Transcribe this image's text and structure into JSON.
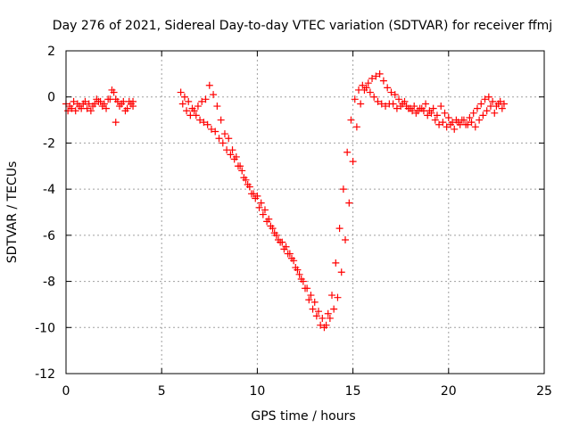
{
  "chart_data": {
    "type": "scatter",
    "title": "Day 276 of 2021, Sidereal Day-to-day VTEC variation (SDTVAR) for receiver ffmj",
    "xlabel": "GPS time / hours",
    "ylabel": "SDTVAR / TECUs",
    "xlim": [
      0,
      25
    ],
    "ylim": [
      -12,
      2
    ],
    "xticks": [
      0,
      5,
      10,
      15,
      20,
      25
    ],
    "yticks": [
      -12,
      -10,
      -8,
      -6,
      -4,
      -2,
      0,
      2
    ],
    "grid": true,
    "marker": "+",
    "color": "#ff0000",
    "series": [
      {
        "name": "SDTVAR",
        "x": [
          0.0,
          0.2,
          0.4,
          0.6,
          0.8,
          1.0,
          1.2,
          1.4,
          1.6,
          1.8,
          2.0,
          2.2,
          2.4,
          2.5,
          2.6,
          2.7,
          2.8,
          3.0,
          3.2,
          3.4,
          3.5,
          0.1,
          0.3,
          0.5,
          0.7,
          0.9,
          1.1,
          1.3,
          1.5,
          1.7,
          1.9,
          2.1,
          2.3,
          2.6,
          2.9,
          3.1,
          3.3,
          3.5,
          6.0,
          6.2,
          6.4,
          6.6,
          6.8,
          7.0,
          7.2,
          7.4,
          7.6,
          7.8,
          8.0,
          8.2,
          8.4,
          8.6,
          8.8,
          9.0,
          9.2,
          9.4,
          9.6,
          9.8,
          10.0,
          10.2,
          10.4,
          10.6,
          10.8,
          11.0,
          11.2,
          11.4,
          11.6,
          11.8,
          12.0,
          12.2,
          12.4,
          12.6,
          12.8,
          13.0,
          13.2,
          13.4,
          13.6,
          13.8,
          14.0,
          14.2,
          14.4,
          14.6,
          14.8,
          15.0,
          15.2,
          15.4,
          15.6,
          15.8,
          16.0,
          16.2,
          16.4,
          16.6,
          16.8,
          17.0,
          17.2,
          17.4,
          17.6,
          17.8,
          18.0,
          18.2,
          18.4,
          18.6,
          18.8,
          19.0,
          19.2,
          19.4,
          19.6,
          19.8,
          20.0,
          20.2,
          20.4,
          20.6,
          20.8,
          21.0,
          21.2,
          21.4,
          21.6,
          21.8,
          22.0,
          22.2,
          22.4,
          22.6,
          22.8,
          6.1,
          6.3,
          6.5,
          6.7,
          6.9,
          7.1,
          7.3,
          7.5,
          7.7,
          7.9,
          8.1,
          8.3,
          8.5,
          8.7,
          8.9,
          9.1,
          9.3,
          9.5,
          9.7,
          9.9,
          10.1,
          10.3,
          10.5,
          10.7,
          10.9,
          11.1,
          11.3,
          11.5,
          11.7,
          11.9,
          12.1,
          12.3,
          12.5,
          12.7,
          12.9,
          13.1,
          13.3,
          13.5,
          13.7,
          13.9,
          14.1,
          14.3,
          14.5,
          14.7,
          14.9,
          15.1,
          15.3,
          15.5,
          15.7,
          15.9,
          16.1,
          16.3,
          16.5,
          16.7,
          16.9,
          17.1,
          17.3,
          17.5,
          17.7,
          17.9,
          18.1,
          18.3,
          18.5,
          18.7,
          18.9,
          19.1,
          19.3,
          19.5,
          19.7,
          19.9,
          20.1,
          20.3,
          20.5,
          20.7,
          20.9,
          21.1,
          21.3,
          21.5,
          21.7,
          21.9,
          22.1,
          22.3,
          22.5,
          22.7,
          22.9
        ],
        "y": [
          -0.3,
          -0.4,
          -0.2,
          -0.3,
          -0.5,
          -0.2,
          -0.3,
          -0.4,
          -0.1,
          -0.2,
          -0.3,
          -0.1,
          0.3,
          0.2,
          -0.1,
          -0.2,
          -0.4,
          -0.2,
          -0.5,
          -0.3,
          -0.2,
          -0.6,
          -0.5,
          -0.6,
          -0.4,
          -0.3,
          -0.5,
          -0.6,
          -0.3,
          -0.2,
          -0.4,
          -0.5,
          -0.1,
          -1.1,
          -0.3,
          -0.6,
          -0.2,
          -0.4,
          0.2,
          0.0,
          -0.2,
          -0.5,
          -0.8,
          -1.0,
          -1.1,
          -1.2,
          -1.4,
          -1.5,
          -1.8,
          -2.0,
          -2.3,
          -2.5,
          -2.7,
          -3.0,
          -3.2,
          -3.6,
          -3.9,
          -4.2,
          -4.3,
          -4.6,
          -4.9,
          -5.3,
          -5.7,
          -6.0,
          -6.3,
          -6.6,
          -6.8,
          -7.0,
          -7.4,
          -7.7,
          -8.0,
          -8.3,
          -8.6,
          -8.9,
          -9.3,
          -9.6,
          -9.9,
          -9.6,
          -9.2,
          -8.7,
          -7.6,
          -6.2,
          -4.6,
          -2.8,
          -1.3,
          -0.3,
          0.3,
          0.6,
          0.8,
          0.9,
          1.0,
          0.7,
          0.4,
          0.2,
          0.1,
          -0.1,
          -0.3,
          -0.4,
          -0.5,
          -0.4,
          -0.6,
          -0.5,
          -0.3,
          -0.6,
          -0.5,
          -0.8,
          -0.4,
          -0.7,
          -0.9,
          -1.1,
          -1.0,
          -1.2,
          -1.0,
          -1.2,
          -1.1,
          -1.3,
          -1.0,
          -0.8,
          -0.6,
          -0.4,
          -0.7,
          -0.3,
          -0.5,
          -0.3,
          -0.6,
          -0.8,
          -0.6,
          -0.4,
          -0.2,
          -0.1,
          0.5,
          0.1,
          -0.4,
          -1.0,
          -1.6,
          -1.8,
          -2.3,
          -2.6,
          -3.0,
          -3.5,
          -3.8,
          -4.2,
          -4.4,
          -4.8,
          -5.1,
          -5.4,
          -5.6,
          -5.9,
          -6.2,
          -6.3,
          -6.5,
          -6.8,
          -7.1,
          -7.5,
          -7.9,
          -8.3,
          -8.8,
          -9.2,
          -9.5,
          -9.9,
          -10.0,
          -9.4,
          -8.6,
          -7.2,
          -5.7,
          -4.0,
          -2.4,
          -1.0,
          -0.1,
          0.3,
          0.5,
          0.4,
          0.2,
          0.0,
          -0.2,
          -0.3,
          -0.4,
          -0.3,
          -0.3,
          -0.5,
          -0.4,
          -0.2,
          -0.5,
          -0.6,
          -0.7,
          -0.5,
          -0.6,
          -0.8,
          -0.7,
          -1.0,
          -1.2,
          -1.1,
          -1.3,
          -1.2,
          -1.4,
          -1.1,
          -1.0,
          -1.2,
          -0.9,
          -0.7,
          -0.5,
          -0.3,
          -0.1,
          0.0,
          -0.2,
          -0.4,
          -0.2,
          -0.3
        ]
      }
    ]
  }
}
